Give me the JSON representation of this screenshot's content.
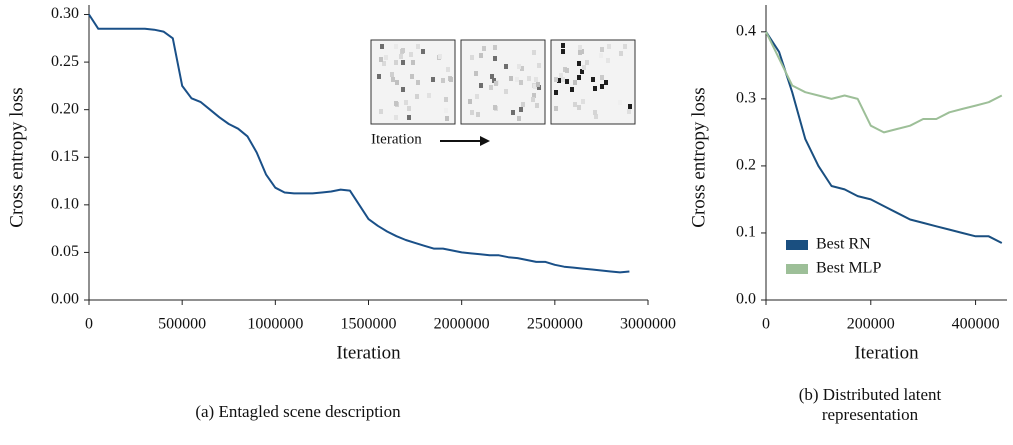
{
  "chart_data": [
    {
      "type": "line",
      "ylabel": "Cross entropy loss",
      "xlabel": "Iteration",
      "annotation": "Iteration",
      "caption": "(a) Entagled scene description",
      "x": [
        0,
        50000,
        100000,
        150000,
        200000,
        250000,
        300000,
        350000,
        400000,
        450000,
        500000,
        550000,
        600000,
        650000,
        700000,
        750000,
        800000,
        850000,
        900000,
        950000,
        1000000,
        1050000,
        1100000,
        1150000,
        1200000,
        1250000,
        1300000,
        1350000,
        1400000,
        1450000,
        1500000,
        1550000,
        1600000,
        1650000,
        1700000,
        1750000,
        1800000,
        1850000,
        1900000,
        1950000,
        2000000,
        2050000,
        2100000,
        2150000,
        2200000,
        2250000,
        2300000,
        2350000,
        2400000,
        2450000,
        2500000,
        2550000,
        2600000,
        2650000,
        2700000,
        2750000,
        2800000,
        2850000,
        2900000
      ],
      "series": [
        {
          "color": "#1a5088",
          "values": [
            0.3,
            0.285,
            0.285,
            0.285,
            0.285,
            0.285,
            0.285,
            0.284,
            0.282,
            0.275,
            0.225,
            0.212,
            0.208,
            0.2,
            0.192,
            0.185,
            0.18,
            0.172,
            0.155,
            0.132,
            0.118,
            0.113,
            0.112,
            0.112,
            0.112,
            0.113,
            0.114,
            0.116,
            0.115,
            0.1,
            0.085,
            0.078,
            0.072,
            0.067,
            0.063,
            0.06,
            0.057,
            0.054,
            0.054,
            0.052,
            0.05,
            0.049,
            0.048,
            0.047,
            0.047,
            0.045,
            0.044,
            0.042,
            0.04,
            0.04,
            0.037,
            0.035,
            0.034,
            0.033,
            0.032,
            0.031,
            0.03,
            0.029,
            0.03
          ]
        }
      ],
      "xlim": [
        0,
        3000000
      ],
      "xticks": [
        0,
        500000,
        1000000,
        1500000,
        2000000,
        2500000,
        3000000
      ],
      "ylim": [
        0,
        0.31
      ],
      "yticks": [
        {
          "value": 0,
          "label": "0.00"
        },
        0.05,
        {
          "value": 0.1,
          "label": "0.10"
        },
        0.15,
        {
          "value": 0.2,
          "label": "0.20"
        },
        0.25,
        {
          "value": 0.3,
          "label": "0.30"
        }
      ]
    },
    {
      "type": "line",
      "ylabel": "Cross entropy loss",
      "xlabel": "Iteration",
      "caption": "(b) Distributed latent representation",
      "legend": "lower left",
      "x": [
        0,
        25000,
        50000,
        75000,
        100000,
        125000,
        150000,
        175000,
        200000,
        225000,
        250000,
        275000,
        300000,
        325000,
        350000,
        375000,
        400000,
        425000,
        450000
      ],
      "series": [
        {
          "name": "Best RN",
          "color": "#1a4f80",
          "values": [
            0.4,
            0.37,
            0.31,
            0.24,
            0.2,
            0.17,
            0.165,
            0.155,
            0.15,
            0.14,
            0.13,
            0.12,
            0.115,
            0.11,
            0.105,
            0.1,
            0.095,
            0.095,
            0.085
          ]
        },
        {
          "name": "Best MLP",
          "color": "#9dbf98",
          "values": [
            0.4,
            0.36,
            0.32,
            0.31,
            0.305,
            0.3,
            0.305,
            0.3,
            0.26,
            0.25,
            0.255,
            0.26,
            0.27,
            0.27,
            0.28,
            0.285,
            0.29,
            0.295,
            0.305
          ]
        }
      ],
      "xlim": [
        0,
        460000
      ],
      "xticks": [
        0,
        200000,
        400000
      ],
      "ylim": [
        0,
        0.44
      ],
      "yticks": [
        {
          "value": 0,
          "label": "0.0"
        },
        0.1,
        0.2,
        0.3,
        0.4
      ]
    }
  ]
}
